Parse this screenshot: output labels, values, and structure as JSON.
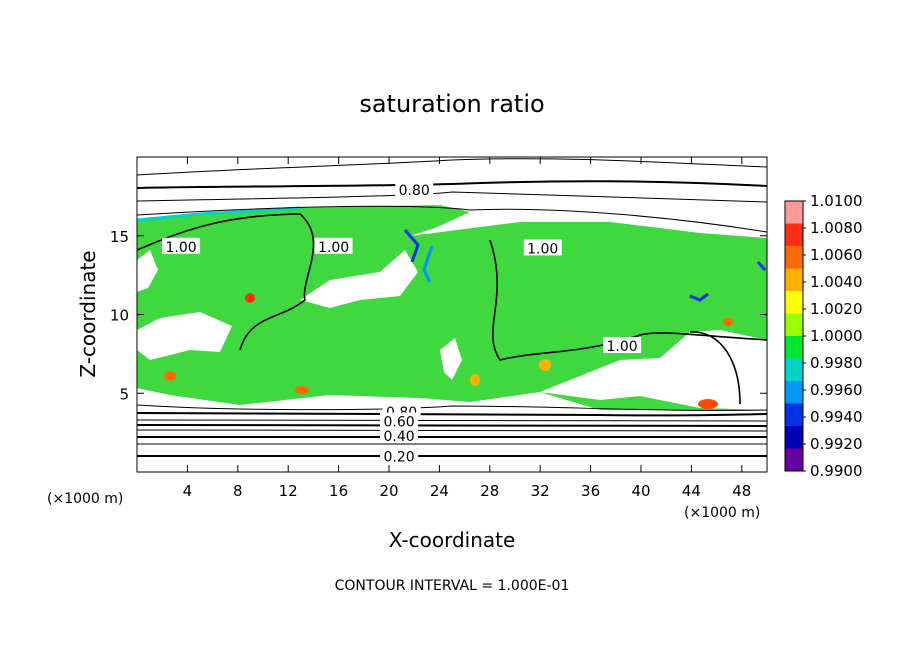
{
  "chart_data": {
    "type": "heatmap",
    "title": "saturation ratio",
    "xlabel": "X-coordinate",
    "ylabel": "Z-coordinate",
    "x_unit": "(×1000 m)",
    "z_unit": "(×1000 m)",
    "xlim": [
      0,
      50
    ],
    "ylim": [
      0,
      20
    ],
    "x_ticks": [
      4,
      8,
      12,
      16,
      20,
      24,
      28,
      32,
      36,
      40,
      44,
      48
    ],
    "y_ticks": [
      5,
      10,
      15
    ],
    "footer": "CONTOUR INTERVAL = 1.000E-01",
    "colorbar": {
      "min": 0.99,
      "max": 1.01,
      "labels": [
        "1.0100",
        "1.0080",
        "1.0060",
        "1.0040",
        "1.0020",
        "1.0000",
        "0.9980",
        "0.9960",
        "0.9940",
        "0.9920",
        "0.9900"
      ],
      "colors": [
        "#ff9a9a",
        "#ff2d14",
        "#ff6a00",
        "#ffb000",
        "#ffff00",
        "#9cff00",
        "#00e632",
        "#00d2c8",
        "#0096ff",
        "#0032e6",
        "#0000b4",
        "#6a00a0"
      ]
    },
    "contour_labels": [
      {
        "text": "0.80",
        "x": 22,
        "z": 17.9
      },
      {
        "text": "0.80",
        "x": 21,
        "z": 3.8
      },
      {
        "text": "0.60",
        "x": 20.8,
        "z": 3.2
      },
      {
        "text": "0.40",
        "x": 20.8,
        "z": 2.3
      },
      {
        "text": "0.20",
        "x": 20.8,
        "z": 1.0
      },
      {
        "text": "1.00",
        "x": 3.5,
        "z": 14.3
      },
      {
        "text": "1.00",
        "x": 15.6,
        "z": 14.3
      },
      {
        "text": "1.00",
        "x": 32.2,
        "z": 14.2
      },
      {
        "text": "1.00",
        "x": 38.5,
        "z": 8.0
      }
    ]
  }
}
